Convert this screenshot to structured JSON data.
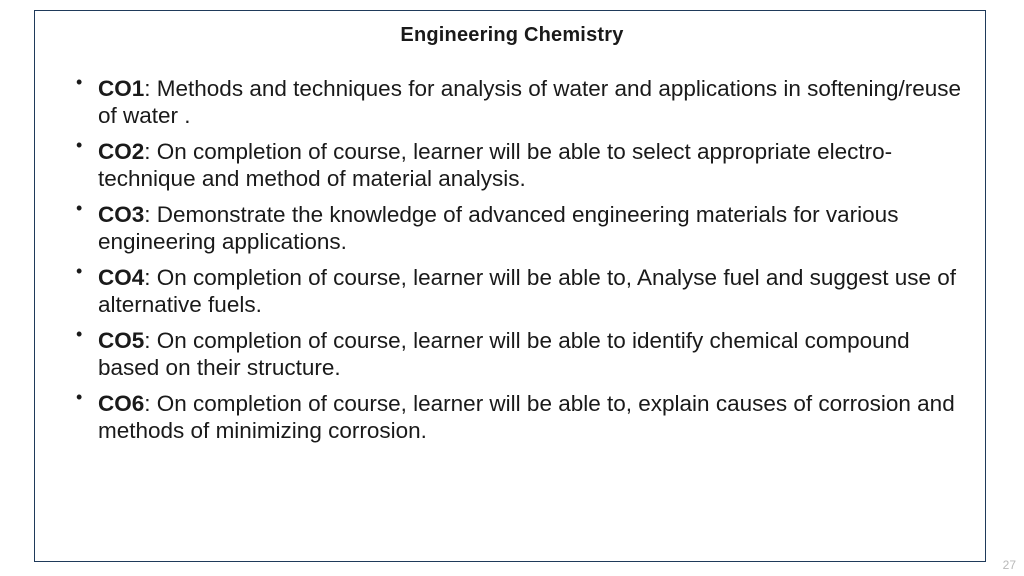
{
  "slide": {
    "title": "Engineering Chemistry",
    "page_number": "27",
    "border_color": "#1f3a5a",
    "background_color": "#ffffff",
    "text_color": "#1a1a1a",
    "title_fontsize": 20,
    "body_fontsize": 22.5,
    "outcomes": [
      {
        "code": "CO1",
        "text": ": Methods and techniques for analysis of water and applications in softening/reuse of water ."
      },
      {
        "code": "CO2",
        "text": ": On completion of course, learner will be able to select appropriate electro-technique and method of material analysis."
      },
      {
        "code": "CO3",
        "text": ": Demonstrate the knowledge of advanced engineering materials for various engineering applications."
      },
      {
        "code": "CO4",
        "text": ": On completion of course, learner will be able to, Analyse fuel and suggest use of alternative fuels."
      },
      {
        "code": "CO5",
        "text": ": On completion of course, learner will be able to identify chemical compound based on their structure."
      },
      {
        "code": "CO6",
        "text": ": On completion of course, learner will be able to, explain causes of corrosion and methods of minimizing corrosion."
      }
    ]
  }
}
